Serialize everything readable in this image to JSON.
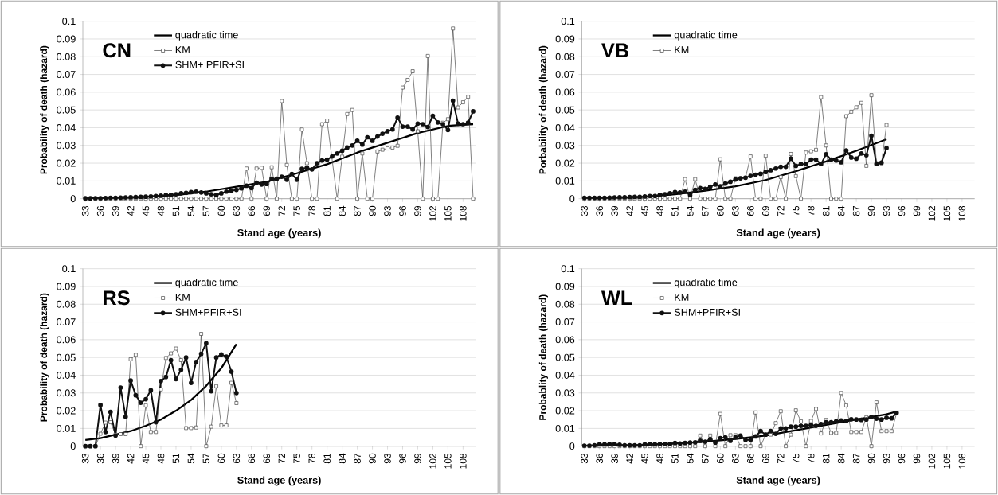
{
  "chart_data": [
    {
      "type": "line",
      "title": "CN",
      "xlabel": "Stand age (years)",
      "ylabel": "Probability of death (hazard)",
      "xlim": [
        32.5,
        110.5
      ],
      "ylim": [
        0,
        0.1
      ],
      "xticks": [
        33,
        36,
        39,
        42,
        45,
        48,
        51,
        54,
        57,
        60,
        63,
        66,
        69,
        72,
        75,
        78,
        81,
        84,
        87,
        90,
        93,
        96,
        99,
        102,
        105,
        108
      ],
      "yticks": [
        0,
        0.01,
        0.02,
        0.03,
        0.04,
        0.05,
        0.06,
        0.07,
        0.08,
        0.09,
        0.1
      ],
      "grid": "y",
      "legend": "top left",
      "x": [
        33,
        34,
        35,
        36,
        37,
        38,
        39,
        40,
        41,
        42,
        43,
        44,
        45,
        46,
        47,
        48,
        49,
        50,
        51,
        52,
        53,
        54,
        55,
        56,
        57,
        58,
        59,
        60,
        61,
        62,
        63,
        64,
        65,
        66,
        67,
        68,
        69,
        70,
        71,
        72,
        73,
        74,
        75,
        76,
        77,
        78,
        79,
        80,
        81,
        82,
        83,
        84,
        85,
        86,
        87,
        88,
        89,
        90,
        91,
        92,
        93,
        94,
        95,
        96,
        97,
        98,
        99,
        100,
        101,
        102,
        103,
        104,
        105,
        106,
        107,
        108,
        109,
        110
      ],
      "series": [
        {
          "name": "quadratic time",
          "color": "#000000",
          "marker": "none",
          "x": [
            33,
            39,
            45,
            51,
            57,
            63,
            69,
            75,
            81,
            87,
            93,
            99,
            105,
            110
          ],
          "values": [
            0.0002,
            0.0005,
            0.001,
            0.002,
            0.004,
            0.0067,
            0.0095,
            0.0143,
            0.0194,
            0.026,
            0.0315,
            0.037,
            0.041,
            0.042
          ]
        },
        {
          "name": "KM",
          "color": "#404040",
          "marker": "square",
          "values": [
            0,
            0,
            0,
            0,
            0,
            0,
            0,
            0,
            0,
            0,
            0,
            0,
            0,
            0,
            0,
            0,
            0,
            0,
            0,
            0,
            0,
            0,
            0,
            0,
            0,
            0,
            0,
            0,
            0,
            0,
            0,
            0,
            0.017,
            0,
            0.017,
            0.0174,
            0,
            0.0177,
            0,
            0.055,
            0.019,
            0,
            0,
            0.039,
            0.02,
            0,
            0,
            0.042,
            0.044,
            null,
            0,
            0.0237,
            0.0477,
            0.05,
            0,
            0.0255,
            0,
            0,
            0.0266,
            0.0276,
            0.0283,
            0.0288,
            0.0298,
            0.0626,
            0.0669,
            0.0718,
            0.038,
            0,
            0.0804,
            0,
            0,
            0.0428,
            0.0448,
            0.0959,
            0.0514,
            0.0543,
            0.0574,
            0
          ]
        },
        {
          "name": "SHM+ PFIR+SI",
          "color": "#111111",
          "marker": "circle",
          "values": [
            0.0002,
            0.0002,
            0.0003,
            0.0003,
            0.0004,
            0.0005,
            0.0005,
            0.0006,
            0.0007,
            0.0008,
            0.0009,
            0.001,
            0.0011,
            0.0013,
            0.0015,
            0.0017,
            0.002,
            0.0022,
            0.0025,
            0.003,
            0.0033,
            0.0037,
            0.004,
            0.0035,
            0.003,
            0.0025,
            0.002,
            0.003,
            0.004,
            0.0045,
            0.005,
            0.0058,
            0.0073,
            0.006,
            0.009,
            0.008,
            0.0083,
            0.0112,
            0.0112,
            0.0124,
            0.0107,
            0.0139,
            0.0107,
            0.0168,
            0.0175,
            0.0165,
            0.02,
            0.0215,
            0.022,
            0.0238,
            0.0255,
            0.027,
            0.0288,
            0.03,
            0.0326,
            0.0305,
            0.0346,
            0.0326,
            0.035,
            0.0366,
            0.038,
            0.039,
            0.0457,
            0.0406,
            0.0406,
            0.039,
            0.0423,
            0.042,
            0.0404,
            0.0467,
            0.043,
            0.042,
            0.0387,
            0.0552,
            0.0423,
            0.042,
            0.0428,
            0.0492
          ]
        }
      ]
    },
    {
      "type": "line",
      "title": "VB",
      "xlabel": "Stand age (years)",
      "ylabel": "Porbability of death (hazard)",
      "xlim": [
        32.5,
        110.5
      ],
      "ylim": [
        0,
        0.1
      ],
      "xticks": [
        33,
        36,
        39,
        42,
        45,
        48,
        51,
        54,
        57,
        60,
        63,
        66,
        69,
        72,
        75,
        78,
        81,
        84,
        87,
        90,
        93,
        96,
        99,
        102,
        105,
        108
      ],
      "yticks": [
        0,
        0.01,
        0.02,
        0.03,
        0.04,
        0.05,
        0.06,
        0.07,
        0.08,
        0.09,
        0.1
      ],
      "grid": "y",
      "legend": "top left",
      "x": [
        33,
        34,
        35,
        36,
        37,
        38,
        39,
        40,
        41,
        42,
        43,
        44,
        45,
        46,
        47,
        48,
        49,
        50,
        51,
        52,
        53,
        54,
        55,
        56,
        57,
        58,
        59,
        60,
        61,
        62,
        63,
        64,
        65,
        66,
        67,
        68,
        69,
        70,
        71,
        72,
        73,
        74,
        75,
        76,
        77,
        78,
        79,
        80,
        81,
        82,
        83,
        84,
        85,
        86,
        87,
        88,
        89,
        90,
        91,
        92,
        93
      ],
      "series": [
        {
          "name": "quadratic time",
          "color": "#000000",
          "marker": "none",
          "x": [
            33,
            39,
            45,
            51,
            57,
            63,
            69,
            75,
            81,
            87,
            93
          ],
          "values": [
            0.0002,
            0.0005,
            0.001,
            0.0025,
            0.0045,
            0.007,
            0.0105,
            0.0155,
            0.021,
            0.027,
            0.0335
          ]
        },
        {
          "name": "KM",
          "color": "#404040",
          "marker": "square",
          "values": [
            0,
            0,
            0,
            0,
            0,
            0,
            0,
            0,
            0,
            0,
            0,
            0,
            0,
            0,
            0,
            0,
            0,
            0,
            0,
            0,
            0.011,
            0,
            0.011,
            0,
            0,
            0,
            0,
            0.0222,
            0,
            0,
            0.0115,
            0.0115,
            0.0118,
            0.0238,
            0,
            0,
            0.0242,
            0,
            0,
            0.0122,
            0,
            0.0252,
            0.0127,
            0,
            0.026,
            0.0267,
            0.0275,
            0.0572,
            0.03,
            0,
            0,
            0,
            0.0465,
            0.049,
            0.0515,
            0.054,
            0.0185,
            0.0583,
            0.02,
            0.02,
            0.0415
          ]
        },
        {
          "color": "#111111",
          "marker": "circle",
          "values": [
            0.0005,
            0.0005,
            0.0005,
            0.0005,
            0.0005,
            0.0006,
            0.0007,
            0.0008,
            0.0008,
            0.0009,
            0.001,
            0.001,
            0.0012,
            0.0015,
            0.0015,
            0.0022,
            0.0025,
            0.003,
            0.0037,
            0.0035,
            0.004,
            0.002,
            0.005,
            0.006,
            0.0055,
            0.0068,
            0.008,
            0.007,
            0.0085,
            0.0095,
            0.0108,
            0.0115,
            0.0118,
            0.0128,
            0.0135,
            0.014,
            0.015,
            0.016,
            0.017,
            0.018,
            0.018,
            0.0225,
            0.0185,
            0.0195,
            0.0195,
            0.022,
            0.022,
            0.0195,
            0.025,
            0.022,
            0.0215,
            0.0205,
            0.0272,
            0.0232,
            0.0225,
            0.0255,
            0.0245,
            0.0355,
            0.0195,
            0.0203,
            0.0285
          ]
        }
      ]
    },
    {
      "type": "line",
      "title": "RS",
      "xlabel": "Stand age (years)",
      "ylabel": "Probability of death (hazard)",
      "xlim": [
        32.5,
        110.5
      ],
      "ylim": [
        0,
        0.1
      ],
      "xticks": [
        33,
        36,
        39,
        42,
        45,
        48,
        51,
        54,
        57,
        60,
        63,
        66,
        69,
        72,
        75,
        78,
        81,
        84,
        87,
        90,
        93,
        96,
        99,
        102,
        105,
        108
      ],
      "yticks": [
        0,
        0.01,
        0.02,
        0.03,
        0.04,
        0.05,
        0.06,
        0.07,
        0.08,
        0.09,
        0.1
      ],
      "grid": "y",
      "legend": "top left",
      "x": [
        33,
        34,
        35,
        36,
        37,
        38,
        39,
        40,
        41,
        42,
        43,
        44,
        45,
        46,
        47,
        48,
        49,
        50,
        51,
        52,
        53,
        54,
        55,
        56,
        57,
        58,
        59,
        60,
        61,
        62,
        63
      ],
      "series": [
        {
          "name": "quadratic time",
          "color": "#000000",
          "marker": "none",
          "x": [
            33,
            36,
            39,
            42,
            45,
            48,
            51,
            54,
            57,
            60,
            63
          ],
          "values": [
            0.0035,
            0.0045,
            0.0065,
            0.0085,
            0.0115,
            0.015,
            0.02,
            0.026,
            0.034,
            0.044,
            0.0575
          ]
        },
        {
          "name": "KM",
          "color": "#404040",
          "marker": "square",
          "values": [
            0,
            0,
            0,
            0.007,
            0.0133,
            0.0135,
            0.0065,
            0.0068,
            0.0068,
            0.049,
            0.0515,
            0,
            0.023,
            0.008,
            0.008,
            0.032,
            0.0497,
            0.0523,
            0.055,
            0.0485,
            0.0102,
            0.0102,
            0.0105,
            0.0633,
            0,
            0.011,
            0.0338,
            0.0117,
            0.0117,
            0.0357,
            0.0243
          ]
        },
        {
          "name": "SHM+PFIR+SI",
          "color": "#111111",
          "marker": "circle",
          "values": [
            0,
            0,
            0,
            0.0232,
            0.008,
            0.0193,
            0.006,
            0.033,
            0.0165,
            0.037,
            0.0287,
            0.0245,
            0.0265,
            0.0315,
            0.0135,
            0.0367,
            0.039,
            0.0485,
            0.0378,
            0.043,
            0.05,
            0.0357,
            0.0475,
            0.052,
            0.058,
            0.031,
            0.05,
            0.0517,
            0.0505,
            0.042,
            0.03
          ]
        }
      ]
    },
    {
      "type": "line",
      "title": "WL",
      "xlabel": "Stand age (years)",
      "ylabel": "Probablity of death (hazard)",
      "xlim": [
        32.5,
        110.5
      ],
      "ylim": [
        0,
        0.1
      ],
      "xticks": [
        33,
        36,
        39,
        42,
        45,
        48,
        51,
        54,
        57,
        60,
        63,
        66,
        69,
        72,
        75,
        78,
        81,
        84,
        87,
        90,
        93,
        96,
        99,
        102,
        105,
        108
      ],
      "yticks": [
        0,
        0.01,
        0.02,
        0.03,
        0.04,
        0.05,
        0.06,
        0.07,
        0.08,
        0.09,
        0.1
      ],
      "grid": "y",
      "legend": "top left",
      "x": [
        33,
        34,
        35,
        36,
        37,
        38,
        39,
        40,
        41,
        42,
        43,
        44,
        45,
        46,
        47,
        48,
        49,
        50,
        51,
        52,
        53,
        54,
        55,
        56,
        57,
        58,
        59,
        60,
        61,
        62,
        63,
        64,
        65,
        66,
        67,
        68,
        69,
        70,
        71,
        72,
        73,
        74,
        75,
        76,
        77,
        78,
        79,
        80,
        81,
        82,
        83,
        84,
        85,
        86,
        87,
        88,
        89,
        90,
        91,
        92,
        93,
        94,
        95
      ],
      "series": [
        {
          "name": "quadratic time",
          "color": "#000000",
          "marker": "none",
          "x": [
            33,
            39,
            45,
            51,
            57,
            63,
            69,
            75,
            81,
            87,
            93,
            95
          ],
          "values": [
            0.0002,
            0.0004,
            0.0007,
            0.0015,
            0.0025,
            0.004,
            0.006,
            0.009,
            0.012,
            0.015,
            0.018,
            0.0195
          ]
        },
        {
          "name": "KM",
          "color": "#404040",
          "marker": "square",
          "values": [
            0,
            0,
            0,
            0,
            0,
            0,
            0,
            0,
            0,
            0,
            0,
            0,
            0,
            0,
            0,
            0,
            0,
            0,
            0,
            0,
            0,
            0,
            0,
            0.006,
            0,
            0.006,
            0,
            0.0182,
            0,
            0.0062,
            0.0062,
            0,
            0,
            0,
            0.019,
            0,
            0.0065,
            0.0065,
            0.013,
            0.0197,
            0,
            0.0065,
            0.0202,
            0.014,
            0,
            0.0142,
            0.021,
            0.0072,
            0.0148,
            0.0075,
            0.0075,
            0.03,
            0.023,
            0.008,
            0.008,
            0.008,
            0.0163,
            0,
            0.0247,
            0.0085,
            0.0085,
            0.0085,
            0.0185
          ]
        },
        {
          "name": "SHM+PFIR+SI",
          "color": "#111111",
          "marker": "circle",
          "values": [
            0.0003,
            0.0003,
            0.0005,
            0.001,
            0.001,
            0.0012,
            0.0012,
            0.0008,
            0.0005,
            0.0005,
            0.0005,
            0.0005,
            0.001,
            0.0012,
            0.001,
            0.0012,
            0.0012,
            0.0012,
            0.0018,
            0.0015,
            0.0018,
            0.002,
            0.0022,
            0.003,
            0.0025,
            0.004,
            0.002,
            0.0045,
            0.005,
            0.003,
            0.005,
            0.006,
            0.0035,
            0.0035,
            0.0055,
            0.0085,
            0.0065,
            0.0085,
            0.007,
            0.01,
            0.01,
            0.011,
            0.011,
            0.0115,
            0.0115,
            0.012,
            0.0115,
            0.0125,
            0.0135,
            0.0135,
            0.014,
            0.0145,
            0.0142,
            0.0152,
            0.015,
            0.0148,
            0.015,
            0.0165,
            0.0155,
            0.015,
            0.016,
            0.0157,
            0.0188
          ]
        }
      ]
    }
  ]
}
